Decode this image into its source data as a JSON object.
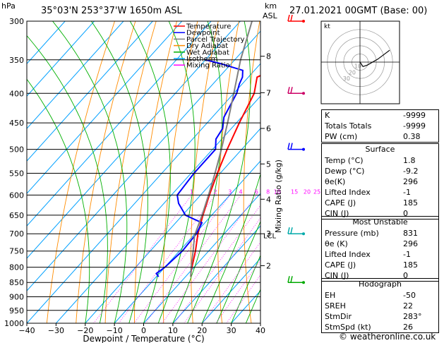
{
  "header": {
    "hpa_label": "hPa",
    "location": "35°03'N  253°37'W  1650m  ASL",
    "km_label": "km",
    "asl_label": "ASL",
    "datetime": "27.01.2021  00GMT  (Base: 00)"
  },
  "legend": [
    {
      "label": "Temperature",
      "color": "#ff0000"
    },
    {
      "label": "Dewpoint",
      "color": "#0000ff"
    },
    {
      "label": "Parcel Trajectory",
      "color": "#808080"
    },
    {
      "label": "Dry Adiabat",
      "color": "#ff8c00"
    },
    {
      "label": "Wet Adiabat",
      "color": "#00b000"
    },
    {
      "label": "Isotherm",
      "color": "#00a0ff"
    },
    {
      "label": "Mixing Ratio",
      "color": "#ff00ff"
    }
  ],
  "chart_data": {
    "type": "line",
    "title": "",
    "xlabel": "Dewpoint / Temperature (°C)",
    "ylabel": "hPa",
    "right_axis_label": "Mixing Ratio (g/kg)",
    "x_ticks": [
      -40,
      -30,
      -20,
      -10,
      0,
      10,
      20,
      30,
      40
    ],
    "x_tick_labels": [
      "−40",
      "−30",
      "−20",
      "−10",
      "0",
      "10",
      "20",
      "30",
      "40"
    ],
    "pressure_ticks": [
      300,
      350,
      400,
      450,
      500,
      550,
      600,
      650,
      700,
      750,
      800,
      850,
      900,
      950,
      1000
    ],
    "km_ticks": [
      {
        "km": "8",
        "p": 345
      },
      {
        "km": "7",
        "p": 399
      },
      {
        "km": "6",
        "p": 460
      },
      {
        "km": "5",
        "p": 530
      },
      {
        "km": "4",
        "p": 610
      },
      {
        "km": "3",
        "p": 700
      },
      {
        "km": "2",
        "p": 795
      }
    ],
    "lcl": {
      "label": "LCL",
      "p": 705
    },
    "mixing_ratio_labels": [
      "1",
      "2",
      "3",
      "4",
      "6",
      "8",
      "10",
      "15",
      "20",
      "25"
    ],
    "mixing_ratio_values": [
      1,
      2,
      3,
      4,
      6,
      8,
      10,
      15,
      20,
      25
    ],
    "mixing_ratio_label_p": 600,
    "temp_range": [
      -40,
      40
    ],
    "p_range": [
      300,
      1000
    ],
    "series": [
      {
        "name": "Temperature",
        "color": "#ff0000",
        "points": [
          [
            1.8,
            831
          ],
          [
            0,
            810
          ],
          [
            -4.5,
            750
          ],
          [
            -9,
            700
          ],
          [
            -13,
            650
          ],
          [
            -17,
            600
          ],
          [
            -21,
            550
          ],
          [
            -25,
            500
          ],
          [
            -29,
            450
          ],
          [
            -33,
            400
          ],
          [
            -37,
            375
          ],
          [
            -34,
            365
          ],
          [
            -30,
            350
          ],
          [
            -27,
            340
          ],
          [
            -24,
            325
          ],
          [
            -20,
            310
          ],
          [
            -17,
            300
          ]
        ]
      },
      {
        "name": "Dewpoint",
        "color": "#0000ff",
        "points": [
          [
            -9.2,
            831
          ],
          [
            -11,
            820
          ],
          [
            -10,
            800
          ],
          [
            -9,
            750
          ],
          [
            -9.5,
            700
          ],
          [
            -11,
            670
          ],
          [
            -15,
            660
          ],
          [
            -19,
            650
          ],
          [
            -25,
            620
          ],
          [
            -28,
            600
          ],
          [
            -29,
            550
          ],
          [
            -29,
            500
          ],
          [
            -32,
            480
          ],
          [
            -33,
            460
          ],
          [
            -36,
            440
          ],
          [
            -39,
            400
          ],
          [
            -41,
            385
          ],
          [
            -42,
            375
          ],
          [
            -44,
            365
          ],
          [
            -54,
            355
          ],
          [
            -60,
            350
          ]
        ]
      },
      {
        "name": "Parcel Trajectory",
        "color": "#808080",
        "points": [
          [
            1.8,
            831
          ],
          [
            -1,
            800
          ],
          [
            -5.3,
            750
          ],
          [
            -9.6,
            705
          ],
          [
            -13.3,
            650
          ],
          [
            -17.3,
            600
          ],
          [
            -21.8,
            550
          ],
          [
            -27,
            500
          ],
          [
            -33,
            450
          ],
          [
            -40,
            400
          ],
          [
            -48,
            350
          ],
          [
            -56,
            300
          ]
        ]
      }
    ],
    "wind_barbs": [
      {
        "p": 300,
        "color": "#ff0000"
      },
      {
        "p": 400,
        "color": "#cc0066"
      },
      {
        "p": 500,
        "color": "#0000ff"
      },
      {
        "p": 700,
        "color": "#00aaaa"
      },
      {
        "p": 850,
        "color": "#00aa00"
      }
    ],
    "hodograph": {
      "label": "kt",
      "rings": [
        10,
        20,
        30,
        40
      ],
      "ring_labels": [
        "10",
        "20",
        "30"
      ],
      "trace": [
        [
          0,
          0
        ],
        [
          2,
          -3
        ],
        [
          5,
          -2
        ],
        [
          12,
          2
        ],
        [
          20,
          8
        ]
      ]
    }
  },
  "indices": {
    "rows": [
      {
        "label": "K",
        "value": "-9999"
      },
      {
        "label": "Totals Totals",
        "value": "-9999"
      },
      {
        "label": "PW (cm)",
        "value": "0.38"
      }
    ]
  },
  "surface": {
    "title": "Surface",
    "rows": [
      {
        "label": "Temp (°C)",
        "value": "1.8"
      },
      {
        "label": "Dewp (°C)",
        "value": "-9.2"
      },
      {
        "label": "θe(K)",
        "value": "296"
      },
      {
        "label": "Lifted Index",
        "value": "-1"
      },
      {
        "label": "CAPE (J)",
        "value": "185"
      },
      {
        "label": "CIN (J)",
        "value": "0"
      }
    ]
  },
  "most_unstable": {
    "title": "Most Unstable",
    "rows": [
      {
        "label": "Pressure (mb)",
        "value": "831"
      },
      {
        "label": "θe (K)",
        "value": "296"
      },
      {
        "label": "Lifted Index",
        "value": "-1"
      },
      {
        "label": "CAPE (J)",
        "value": "185"
      },
      {
        "label": "CIN (J)",
        "value": "0"
      }
    ]
  },
  "hodograph_table": {
    "title": "Hodograph",
    "rows": [
      {
        "label": "EH",
        "value": "-50"
      },
      {
        "label": "SREH",
        "value": "22"
      },
      {
        "label": "StmDir",
        "value": "283°"
      },
      {
        "label": "StmSpd (kt)",
        "value": "26"
      }
    ]
  },
  "footer": "© weatheronline.co.uk"
}
